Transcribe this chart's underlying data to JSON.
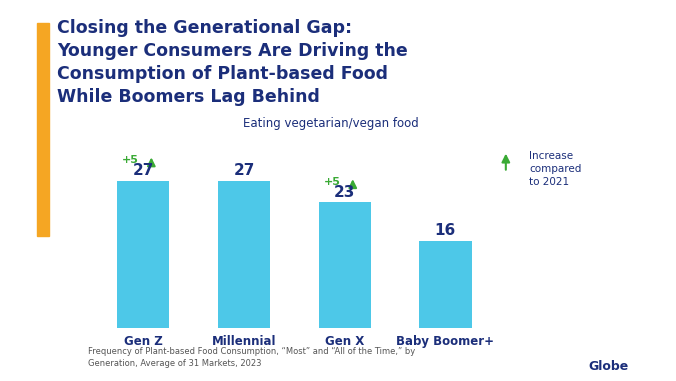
{
  "categories": [
    "Gen Z",
    "Millennial",
    "Gen X",
    "Baby Boomer+"
  ],
  "values": [
    27,
    27,
    23,
    16
  ],
  "bar_color": "#4DC8E8",
  "background_color": "#ffffff",
  "subtitle": "Eating vegetarian/vegan food",
  "title_lines": [
    "Closing the Generational Gap:",
    "Younger Consumers Are Driving the",
    "Consumption of Plant-based Food",
    "While Boomers Lag Behind"
  ],
  "title_color": "#1B2E7A",
  "title_fontsize": 12.5,
  "subtitle_fontsize": 8.5,
  "bar_label_fontsize": 11,
  "bar_label_color": "#1B2E7A",
  "increase_shown": [
    true,
    false,
    true,
    false
  ],
  "increase_values": [
    "+5",
    null,
    "+5",
    null
  ],
  "footnote": "Frequency of Plant-based Food Consumption, “Most” and “All of the Time,” by\nGeneration, Average of 31 Markets, 2023",
  "footnote_fontsize": 6.0,
  "footnote_color": "#555555",
  "accent_bar_color": "#F5A623",
  "increase_color": "#3AAA35",
  "legend_increase_text": "Increase\ncompared\nto 2021",
  "ylim": [
    0,
    35
  ]
}
